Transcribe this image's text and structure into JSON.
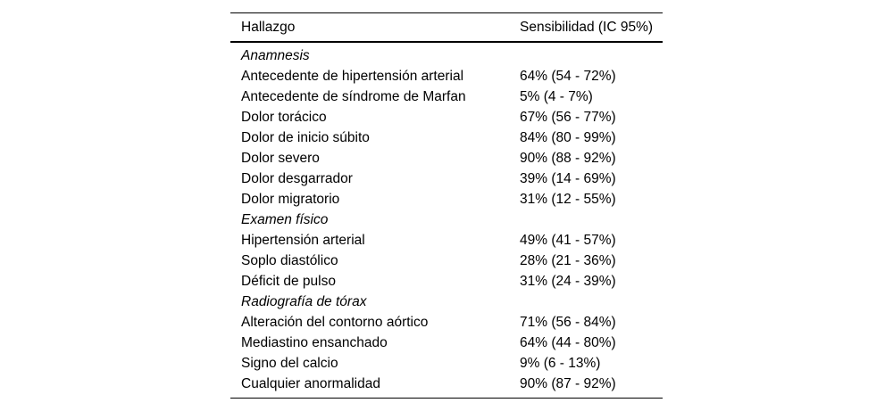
{
  "table": {
    "columns": [
      "Hallazgo",
      "Sensibilidad (IC 95%)"
    ],
    "rows": [
      {
        "type": "section",
        "label": "Anamnesis",
        "value": ""
      },
      {
        "type": "data",
        "label": "Antecedente de hipertensión arterial",
        "value": "64% (54 - 72%)"
      },
      {
        "type": "data",
        "label": "Antecedente de síndrome de Marfan",
        "value": "5% (4 - 7%)"
      },
      {
        "type": "data",
        "label": "Dolor torácico",
        "value": "67% (56 - 77%)"
      },
      {
        "type": "data",
        "label": "Dolor de inicio súbito",
        "value": "84% (80 - 99%)"
      },
      {
        "type": "data",
        "label": "Dolor severo",
        "value": "90% (88 - 92%)"
      },
      {
        "type": "data",
        "label": "Dolor desgarrador",
        "value": "39% (14 - 69%)"
      },
      {
        "type": "data",
        "label": "Dolor migratorio",
        "value": "31% (12 - 55%)"
      },
      {
        "type": "section",
        "label": "Examen físico",
        "value": ""
      },
      {
        "type": "data",
        "label": "Hipertensión arterial",
        "value": "49% (41 - 57%)"
      },
      {
        "type": "data",
        "label": "Soplo diastólico",
        "value": "28% (21 - 36%)"
      },
      {
        "type": "data",
        "label": "Déficit de pulso",
        "value": "31% (24 - 39%)"
      },
      {
        "type": "section",
        "label": "Radiografía de tórax",
        "value": ""
      },
      {
        "type": "data",
        "label": "Alteración del contorno aórtico",
        "value": "71% (56 - 84%)"
      },
      {
        "type": "data",
        "label": "Mediastino ensanchado",
        "value": "64% (44 - 80%)"
      },
      {
        "type": "data",
        "label": "Signo del calcio",
        "value": "9% (6 - 13%)"
      },
      {
        "type": "data",
        "label": "Cualquier anormalidad",
        "value": "90% (87 - 92%)"
      }
    ]
  },
  "colors": {
    "text": "#000000",
    "background": "#ffffff",
    "rule": "#000000"
  }
}
